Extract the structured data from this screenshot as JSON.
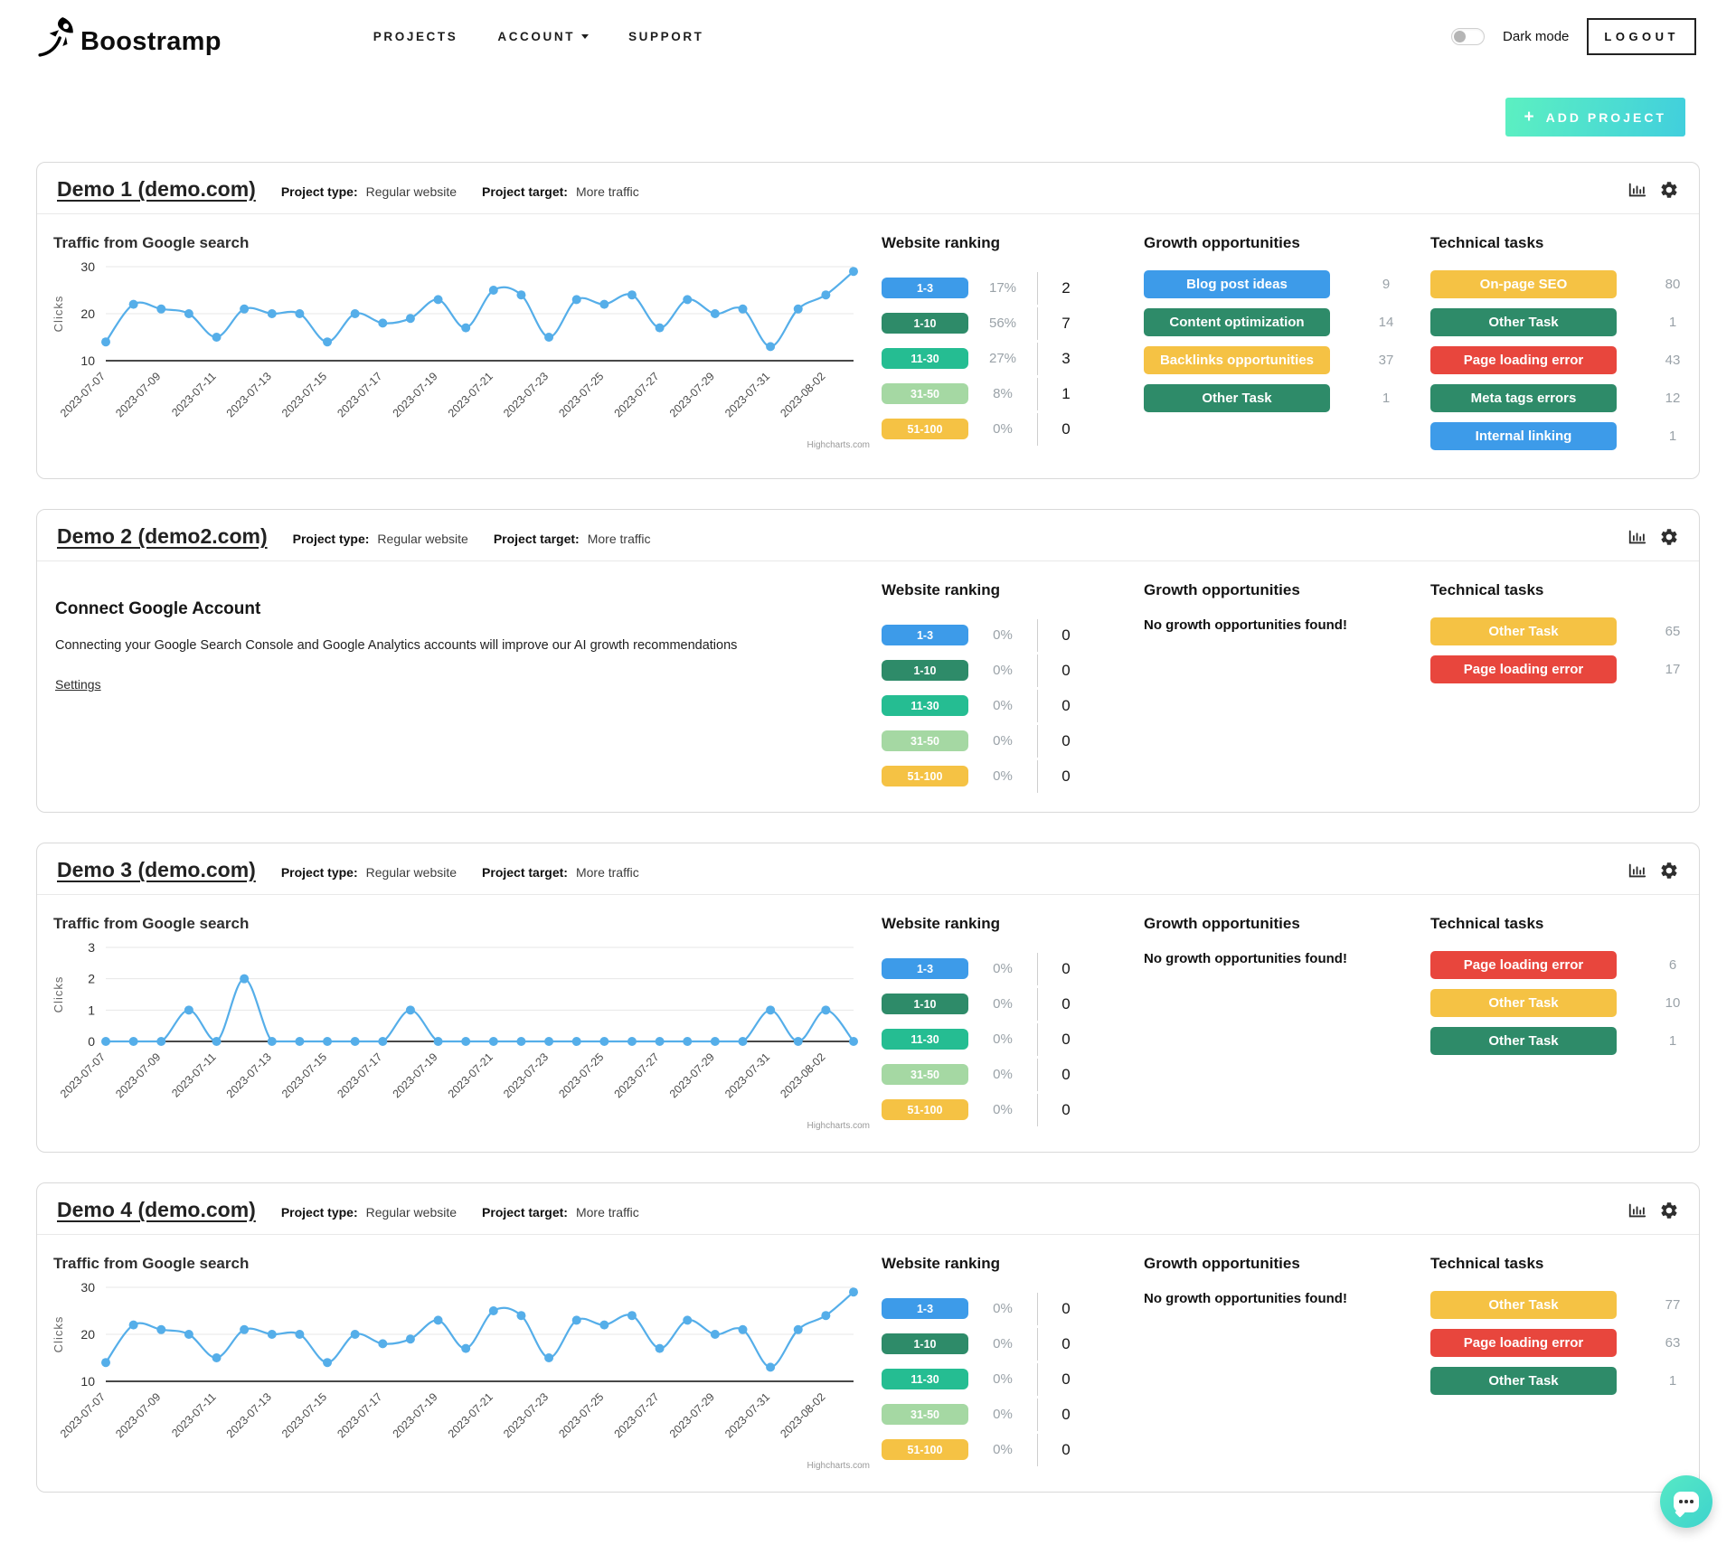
{
  "header": {
    "brand": "Boostramp",
    "nav": [
      {
        "label": "PROJECTS",
        "has_dropdown": false
      },
      {
        "label": "ACCOUNT",
        "has_dropdown": true
      },
      {
        "label": "SUPPORT",
        "has_dropdown": false
      }
    ],
    "dark_mode_label": "Dark mode",
    "logout_label": "LOGOUT"
  },
  "add_project": {
    "plus": "+",
    "label": "ADD PROJECT"
  },
  "labels": {
    "project_type": "Project type:",
    "project_target": "Project target:",
    "website_ranking": "Website ranking",
    "growth_opportunities": "Growth opportunities",
    "technical_tasks": "Technical tasks",
    "no_growth": "No growth opportunities found!"
  },
  "colors": {
    "badge_blue": "#3d9be9",
    "badge_green": "#2e8b69",
    "badge_teal": "#25bd92",
    "badge_lightgreen": "#a5d8a3",
    "badge_yellow": "#f5c244",
    "badge_red": "#e8463d",
    "chart_line": "#55aee9",
    "accent_gradient_start": "#5cf0c1",
    "accent_gradient_end": "#41cfdd"
  },
  "ranking_buckets": [
    {
      "label": "1-3",
      "color": "blue"
    },
    {
      "label": "1-10",
      "color": "green"
    },
    {
      "label": "11-30",
      "color": "teal"
    },
    {
      "label": "31-50",
      "color": "lightgreen"
    },
    {
      "label": "51-100",
      "color": "yellow"
    }
  ],
  "connect_google": {
    "title": "Connect Google Account",
    "text": "Connecting your Google Search Console and Google Analytics accounts will improve our AI growth recommendations",
    "link": "Settings"
  },
  "projects": [
    {
      "title": "Demo 1 (demo.com)",
      "type": "Regular website",
      "target": "More traffic",
      "chart_index": 0,
      "ranking": [
        {
          "pct": "17%",
          "count": "2"
        },
        {
          "pct": "56%",
          "count": "7"
        },
        {
          "pct": "27%",
          "count": "3"
        },
        {
          "pct": "8%",
          "count": "1"
        },
        {
          "pct": "0%",
          "count": "0"
        }
      ],
      "growth": [
        {
          "label": "Blog post ideas",
          "color": "blue",
          "count": "9"
        },
        {
          "label": "Content optimization",
          "color": "green",
          "count": "14"
        },
        {
          "label": "Backlinks opportunities",
          "color": "yellow",
          "count": "37"
        },
        {
          "label": "Other Task",
          "color": "green",
          "count": "1"
        }
      ],
      "technical": [
        {
          "label": "On-page SEO",
          "color": "yellow",
          "count": "80"
        },
        {
          "label": "Other Task",
          "color": "green",
          "count": "1"
        },
        {
          "label": "Page loading error",
          "color": "red",
          "count": "43"
        },
        {
          "label": "Meta tags errors",
          "color": "green",
          "count": "12"
        },
        {
          "label": "Internal linking",
          "color": "blue",
          "count": "1"
        }
      ]
    },
    {
      "title": "Demo 2 (demo2.com)",
      "type": "Regular website",
      "target": "More traffic",
      "chart_index": null,
      "ranking": [
        {
          "pct": "0%",
          "count": "0"
        },
        {
          "pct": "0%",
          "count": "0"
        },
        {
          "pct": "0%",
          "count": "0"
        },
        {
          "pct": "0%",
          "count": "0"
        },
        {
          "pct": "0%",
          "count": "0"
        }
      ],
      "growth": [],
      "technical": [
        {
          "label": "Other Task",
          "color": "yellow",
          "count": "65"
        },
        {
          "label": "Page loading error",
          "color": "red",
          "count": "17"
        }
      ]
    },
    {
      "title": "Demo 3 (demo.com)",
      "type": "Regular website",
      "target": "More traffic",
      "chart_index": 1,
      "ranking": [
        {
          "pct": "0%",
          "count": "0"
        },
        {
          "pct": "0%",
          "count": "0"
        },
        {
          "pct": "0%",
          "count": "0"
        },
        {
          "pct": "0%",
          "count": "0"
        },
        {
          "pct": "0%",
          "count": "0"
        }
      ],
      "growth": [],
      "technical": [
        {
          "label": "Page loading error",
          "color": "red",
          "count": "6"
        },
        {
          "label": "Other Task",
          "color": "yellow",
          "count": "10"
        },
        {
          "label": "Other Task",
          "color": "green",
          "count": "1"
        }
      ]
    },
    {
      "title": "Demo 4 (demo.com)",
      "type": "Regular website",
      "target": "More traffic",
      "chart_index": 2,
      "ranking": [
        {
          "pct": "0%",
          "count": "0"
        },
        {
          "pct": "0%",
          "count": "0"
        },
        {
          "pct": "0%",
          "count": "0"
        },
        {
          "pct": "0%",
          "count": "0"
        },
        {
          "pct": "0%",
          "count": "0"
        }
      ],
      "growth": [],
      "technical": [
        {
          "label": "Other Task",
          "color": "yellow",
          "count": "77"
        },
        {
          "label": "Page loading error",
          "color": "red",
          "count": "63"
        },
        {
          "label": "Other Task",
          "color": "green",
          "count": "1"
        }
      ]
    }
  ],
  "chart_data": [
    {
      "type": "line",
      "title": "Traffic from Google search",
      "ylabel": "Clicks",
      "credit": "Highcharts.com",
      "x": [
        "2023-07-07",
        "2023-07-08",
        "2023-07-09",
        "2023-07-10",
        "2023-07-11",
        "2023-07-12",
        "2023-07-13",
        "2023-07-14",
        "2023-07-15",
        "2023-07-16",
        "2023-07-17",
        "2023-07-18",
        "2023-07-19",
        "2023-07-20",
        "2023-07-21",
        "2023-07-22",
        "2023-07-23",
        "2023-07-24",
        "2023-07-25",
        "2023-07-26",
        "2023-07-27",
        "2023-07-28",
        "2023-07-29",
        "2023-07-30",
        "2023-07-31",
        "2023-08-01",
        "2023-08-02",
        "2023-08-03"
      ],
      "values": [
        14,
        22,
        21,
        20,
        15,
        21,
        20,
        20,
        14,
        20,
        18,
        19,
        23,
        17,
        25,
        24,
        15,
        23,
        22,
        24,
        17,
        23,
        20,
        21,
        13,
        21,
        24,
        29
      ],
      "yticks": [
        10,
        20,
        30
      ],
      "ylim": [
        10,
        30
      ],
      "x_label_step": 2,
      "grid": true,
      "legend": false
    },
    {
      "type": "line",
      "title": "Traffic from Google search",
      "ylabel": "Clicks",
      "credit": "Highcharts.com",
      "x": [
        "2023-07-07",
        "2023-07-08",
        "2023-07-09",
        "2023-07-10",
        "2023-07-11",
        "2023-07-12",
        "2023-07-13",
        "2023-07-14",
        "2023-07-15",
        "2023-07-16",
        "2023-07-17",
        "2023-07-18",
        "2023-07-19",
        "2023-07-20",
        "2023-07-21",
        "2023-07-22",
        "2023-07-23",
        "2023-07-24",
        "2023-07-25",
        "2023-07-26",
        "2023-07-27",
        "2023-07-28",
        "2023-07-29",
        "2023-07-30",
        "2023-07-31",
        "2023-08-01",
        "2023-08-02",
        "2023-08-03"
      ],
      "values": [
        0,
        0,
        0,
        1,
        0,
        2,
        0,
        0,
        0,
        0,
        0,
        1,
        0,
        0,
        0,
        0,
        0,
        0,
        0,
        0,
        0,
        0,
        0,
        0,
        1,
        0,
        1,
        0
      ],
      "yticks": [
        0,
        1,
        2,
        3
      ],
      "ylim": [
        0,
        3
      ],
      "x_label_step": 2,
      "grid": true,
      "legend": false
    },
    {
      "type": "line",
      "title": "Traffic from Google search",
      "ylabel": "Clicks",
      "credit": "Highcharts.com",
      "x": [
        "2023-07-07",
        "2023-07-08",
        "2023-07-09",
        "2023-07-10",
        "2023-07-11",
        "2023-07-12",
        "2023-07-13",
        "2023-07-14",
        "2023-07-15",
        "2023-07-16",
        "2023-07-17",
        "2023-07-18",
        "2023-07-19",
        "2023-07-20",
        "2023-07-21",
        "2023-07-22",
        "2023-07-23",
        "2023-07-24",
        "2023-07-25",
        "2023-07-26",
        "2023-07-27",
        "2023-07-28",
        "2023-07-29",
        "2023-07-30",
        "2023-07-31",
        "2023-08-01",
        "2023-08-02",
        "2023-08-03"
      ],
      "values": [
        14,
        22,
        21,
        20,
        15,
        21,
        20,
        20,
        14,
        20,
        18,
        19,
        23,
        17,
        25,
        24,
        15,
        23,
        22,
        24,
        17,
        23,
        20,
        21,
        13,
        21,
        24,
        29
      ],
      "yticks": [
        10,
        20,
        30
      ],
      "ylim": [
        10,
        30
      ],
      "x_label_step": 2,
      "grid": true,
      "legend": false
    }
  ]
}
